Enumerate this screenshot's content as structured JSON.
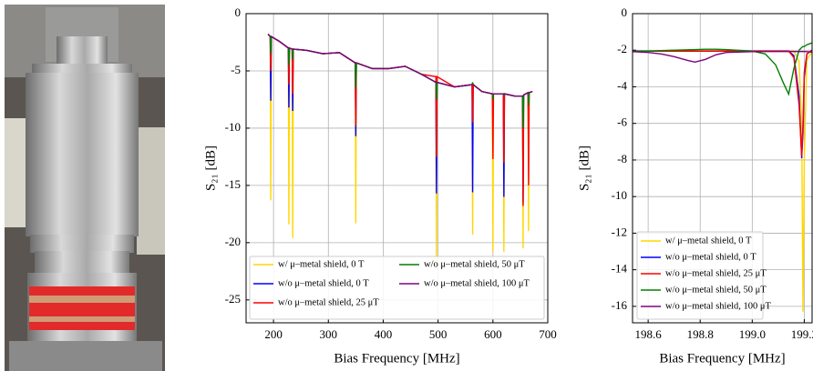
{
  "chart_data": [
    {
      "type": "line",
      "xlabel": "Bias Frequency [MHz]",
      "ylabel": "S₂₁ [dB]",
      "xlim": [
        150,
        700
      ],
      "ylim": [
        -27,
        0
      ],
      "xticks": [
        200,
        300,
        400,
        500,
        600,
        700
      ],
      "yticks": [
        0,
        -5,
        -10,
        -15,
        -20,
        -25
      ],
      "grid": true,
      "legend": "lower left",
      "x": [
        190,
        194,
        195,
        196,
        210,
        227,
        228,
        229,
        234,
        235,
        236,
        260,
        290,
        320,
        349,
        350,
        351,
        380,
        410,
        440,
        470,
        496,
        497,
        498,
        530,
        562,
        563,
        564,
        580,
        599,
        600,
        601,
        619,
        620,
        621,
        640,
        654,
        655,
        656,
        664,
        665,
        666,
        672
      ],
      "series": [
        {
          "name": "w/ μ–metal shield, 0 T",
          "color": "#ffd700",
          "values": [
            -1.8,
            -2.0,
            -16.3,
            -2.0,
            -2.4,
            -3.0,
            -18.4,
            -3.0,
            -3.1,
            -19.6,
            -3.1,
            -3.2,
            -3.5,
            -3.4,
            -4.3,
            -18.3,
            -4.3,
            -4.8,
            -4.8,
            -4.6,
            -5.3,
            -6.0,
            -21.6,
            -6.0,
            -6.4,
            -6.2,
            -19.3,
            -6.2,
            -6.8,
            -7.0,
            -20.8,
            -7.0,
            -7.0,
            -20.8,
            -7.0,
            -7.2,
            -7.2,
            -20.5,
            -7.1,
            -6.9,
            -19.0,
            -6.9,
            -6.8
          ]
        },
        {
          "name": "w/o μ–metal shield, 0 T",
          "color": "#0000ff",
          "values": [
            -1.8,
            -2.0,
            -7.6,
            -2.0,
            -2.4,
            -3.0,
            -8.2,
            -3.0,
            -3.1,
            -8.5,
            -3.1,
            -3.2,
            -3.5,
            -3.4,
            -4.3,
            -10.7,
            -4.3,
            -4.8,
            -4.8,
            -4.6,
            -5.3,
            -6.0,
            -15.7,
            -6.0,
            -6.4,
            -6.2,
            -15.6,
            -6.2,
            -6.8,
            -7.0,
            -8.0,
            -7.0,
            -7.0,
            -16.0,
            -7.0,
            -7.2,
            -7.2,
            -16.5,
            -7.1,
            -6.9,
            -9.5,
            -6.9,
            -6.8
          ]
        },
        {
          "name": "w/o μ–metal shield, 25 μT",
          "color": "#ff0000",
          "values": [
            -1.8,
            -2.0,
            -5.0,
            -2.0,
            -2.4,
            -3.0,
            -6.2,
            -3.0,
            -3.1,
            -7.0,
            -3.1,
            -3.2,
            -3.5,
            -3.4,
            -4.3,
            -9.8,
            -4.3,
            -4.8,
            -4.8,
            -4.6,
            -5.3,
            -5.5,
            -12.5,
            -5.5,
            -6.4,
            -6.2,
            -9.5,
            -6.2,
            -6.8,
            -7.0,
            -12.7,
            -7.0,
            -7.0,
            -13.0,
            -7.0,
            -7.2,
            -7.2,
            -16.8,
            -7.1,
            -6.9,
            -15.0,
            -6.9,
            -6.8
          ]
        },
        {
          "name": "w/o μ–metal shield, 50 μT",
          "color": "#008000",
          "values": [
            -1.8,
            -2.0,
            -3.5,
            -2.0,
            -2.4,
            -3.0,
            -4.5,
            -3.0,
            -3.1,
            -4.0,
            -3.1,
            -3.2,
            -3.5,
            -3.4,
            -4.3,
            -6.5,
            -4.3,
            -4.8,
            -4.8,
            -4.6,
            -5.3,
            -6.0,
            -7.5,
            -6.0,
            -6.4,
            -6.2,
            -6.0,
            -6.2,
            -6.8,
            -7.0,
            -7.5,
            -7.0,
            -7.0,
            -7.2,
            -7.0,
            -7.2,
            -7.2,
            -10.0,
            -7.1,
            -6.9,
            -8.0,
            -6.9,
            -6.8
          ]
        },
        {
          "name": "w/o μ–metal shield, 100 μT",
          "color": "#800080",
          "values": [
            -1.8,
            -2.0,
            -2.0,
            -2.0,
            -2.4,
            -3.0,
            -3.0,
            -3.0,
            -3.1,
            -3.1,
            -3.1,
            -3.2,
            -3.5,
            -3.4,
            -4.3,
            -4.3,
            -4.3,
            -4.8,
            -4.8,
            -4.6,
            -5.3,
            -6.0,
            -6.0,
            -6.0,
            -6.4,
            -6.2,
            -6.2,
            -6.2,
            -6.8,
            -7.0,
            -7.0,
            -7.0,
            -7.0,
            -7.0,
            -7.0,
            -7.2,
            -7.2,
            -7.2,
            -7.1,
            -6.9,
            -6.9,
            -6.9,
            -6.8
          ]
        }
      ]
    },
    {
      "type": "line",
      "xlabel": "Bias Frequency [MHz]",
      "ylabel": "S₂₁ [dB]",
      "xlim": [
        198.54,
        199.23
      ],
      "ylim": [
        -16.9,
        0
      ],
      "xticks": [
        198.6,
        198.8,
        {
          "value": 199,
          "label": "199.0"
        },
        199.2
      ],
      "yticks": [
        0,
        -2,
        -4,
        -6,
        -8,
        -10,
        -12,
        -14,
        -16
      ],
      "grid": true,
      "legend": "lower left",
      "x": [
        198.54,
        198.6,
        198.65,
        198.7,
        198.75,
        198.78,
        198.82,
        198.86,
        198.9,
        199.0,
        199.05,
        199.09,
        199.12,
        199.14,
        199.16,
        199.18,
        199.19,
        199.195,
        199.2,
        199.21,
        199.23
      ],
      "series": [
        {
          "name": "w/ μ–metal shield, 0 T",
          "color": "#ffd700",
          "values": [
            -2.05,
            -2.05,
            -2.05,
            -2.05,
            -2.05,
            -2.05,
            -2.05,
            -2.05,
            -2.05,
            -2.05,
            -2.05,
            -2.05,
            -2.05,
            -2.05,
            -2.05,
            -2.6,
            -6.0,
            -16.3,
            -8.0,
            -2.5,
            -2.1
          ]
        },
        {
          "name": "w/o μ–metal shield, 0 T",
          "color": "#0000ff",
          "values": [
            -2.05,
            -2.05,
            -2.05,
            -2.05,
            -2.05,
            -2.05,
            -2.05,
            -2.05,
            -2.05,
            -2.05,
            -2.05,
            -2.05,
            -2.05,
            -2.05,
            -2.3,
            -4.5,
            -7.9,
            -6.5,
            -3.5,
            -2.2,
            -2.0
          ]
        },
        {
          "name": "w/o μ–metal shield, 25 μT",
          "color": "#ff0000",
          "values": [
            -2.05,
            -2.05,
            -2.05,
            -2.05,
            -2.05,
            -2.05,
            -2.05,
            -2.05,
            -2.05,
            -2.05,
            -2.05,
            -2.05,
            -2.05,
            -2.05,
            -2.4,
            -5.0,
            -7.8,
            -6.0,
            -3.2,
            -2.2,
            -2.0
          ]
        },
        {
          "name": "w/o μ–metal shield, 50 μT",
          "color": "#008000",
          "values": [
            -2.05,
            -2.05,
            -2.02,
            -2.0,
            -1.98,
            -1.97,
            -1.95,
            -1.95,
            -1.97,
            -2.05,
            -2.2,
            -2.8,
            -3.8,
            -4.4,
            -3.0,
            -2.0,
            -1.85,
            -1.8,
            -1.8,
            -1.7,
            -1.6
          ]
        },
        {
          "name": "w/o μ–metal shield, 100 μT",
          "color": "#800080",
          "values": [
            -2.08,
            -2.12,
            -2.2,
            -2.35,
            -2.55,
            -2.65,
            -2.5,
            -2.25,
            -2.12,
            -2.08,
            -2.07,
            -2.07,
            -2.07,
            -2.07,
            -2.07,
            -2.07,
            -2.07,
            -2.07,
            -2.07,
            -2.08,
            -2.1
          ]
        }
      ]
    }
  ]
}
